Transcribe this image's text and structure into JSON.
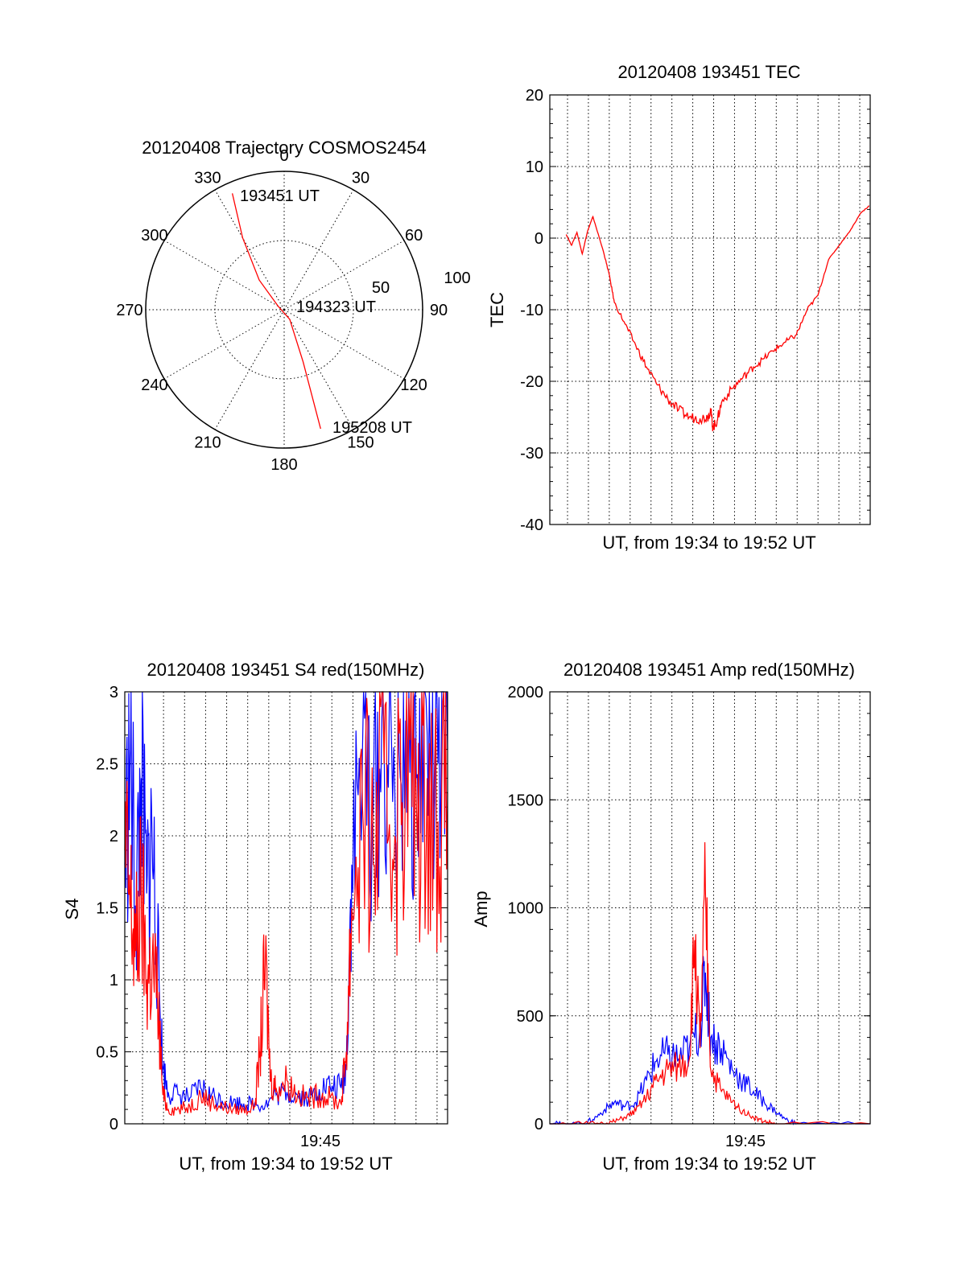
{
  "chart_data": [
    {
      "type": "polar",
      "title": "20120408 Trajectory COSMOS2454",
      "angle_labels": [
        "0",
        "30",
        "60",
        "90",
        "120",
        "150",
        "180",
        "210",
        "240",
        "270",
        "300",
        "330"
      ],
      "ring_labels": [
        "50",
        "100"
      ],
      "trajectory_color": "#ff0000",
      "trajectory": [
        {
          "az": 336,
          "r": 92
        },
        {
          "az": 330,
          "r": 60
        },
        {
          "az": 320,
          "r": 28
        },
        {
          "az": 300,
          "r": 5
        },
        {
          "az": 150,
          "r": 8
        },
        {
          "az": 160,
          "r": 40
        },
        {
          "az": 163,
          "r": 90
        }
      ],
      "annotations": [
        {
          "text": "193451 UT",
          "az": 342,
          "r": 88
        },
        {
          "text": "194323 UT",
          "az": 92,
          "r": 25
        },
        {
          "text": "195208 UT",
          "az": 146,
          "r": 100
        }
      ]
    },
    {
      "type": "line",
      "title": "20120408 193451 TEC",
      "xlabel": "UT, from 19:34 to 19:52 UT",
      "ylabel": "TEC",
      "xlim": [
        19.5697,
        19.8689
      ],
      "ylim": [
        -40,
        20
      ],
      "yticks": [
        "20",
        "10",
        "0",
        "-10",
        "-20",
        "-30",
        "-40"
      ],
      "series": [
        {
          "color": "#ff0000",
          "x": [
            19.585,
            19.59,
            19.595,
            19.6,
            19.605,
            19.61,
            19.62,
            19.625,
            19.63,
            19.64,
            19.65,
            19.66,
            19.67,
            19.68,
            19.69,
            19.7,
            19.71,
            19.717,
            19.72,
            19.722,
            19.726,
            19.73,
            19.74,
            19.75,
            19.76,
            19.77,
            19.78,
            19.79,
            19.8,
            19.81,
            19.82,
            19.83,
            19.84,
            19.85,
            19.86,
            19.868
          ],
          "y": [
            0.5,
            -1,
            0.8,
            -2.2,
            1,
            3,
            -2,
            -5,
            -9,
            -12,
            -15,
            -18,
            -20.5,
            -22.5,
            -24,
            -25,
            -25.2,
            -25,
            -24,
            -26.5,
            -25.5,
            -23,
            -21,
            -19.5,
            -18,
            -16.8,
            -15.5,
            -14.5,
            -13.5,
            -10,
            -8,
            -3,
            -1,
            1,
            3.5,
            4.5
          ]
        }
      ]
    },
    {
      "type": "line",
      "title": "20120408 193451 S4 red(150MHz)",
      "xlabel": "UT, from 19:34 to 19:52 UT",
      "ylabel": "S4",
      "xlim": [
        19.5697,
        19.8689
      ],
      "ylim": [
        0,
        3
      ],
      "yticks": [
        "0",
        "0.5",
        "1",
        "1.5",
        "2",
        "2.5",
        "3"
      ],
      "xticks": [
        "19:45"
      ],
      "series": [
        {
          "color": "#0000ff",
          "x": [
            19.5697,
            19.575,
            19.58,
            19.585,
            19.59,
            19.595,
            19.6,
            19.605,
            19.61,
            19.62,
            19.63,
            19.64,
            19.65,
            19.66,
            19.67,
            19.68,
            19.69,
            19.7,
            19.71,
            19.72,
            19.73,
            19.74,
            19.75,
            19.76,
            19.77,
            19.775,
            19.78,
            19.79,
            19.8,
            19.81,
            19.82,
            19.83,
            19.84,
            19.85,
            19.86,
            19.8689
          ],
          "y": [
            1.8,
            2.6,
            1.5,
            2.4,
            1.6,
            2.0,
            1.2,
            0.4,
            0.22,
            0.2,
            0.18,
            0.25,
            0.2,
            0.16,
            0.15,
            0.14,
            0.14,
            0.13,
            0.2,
            0.22,
            0.2,
            0.18,
            0.24,
            0.26,
            0.25,
            0.4,
            1.8,
            2.6,
            2.2,
            2.7,
            2.3,
            2.8,
            2.4,
            2.7,
            2.5,
            2.6
          ]
        },
        {
          "color": "#ff0000",
          "x": [
            19.5697,
            19.575,
            19.58,
            19.585,
            19.59,
            19.595,
            19.6,
            19.605,
            19.61,
            19.62,
            19.63,
            19.64,
            19.65,
            19.66,
            19.67,
            19.68,
            19.69,
            19.695,
            19.7,
            19.705,
            19.71,
            19.72,
            19.73,
            19.74,
            19.75,
            19.76,
            19.77,
            19.775,
            19.78,
            19.79,
            19.8,
            19.81,
            19.82,
            19.83,
            19.84,
            19.85,
            19.86,
            19.8689
          ],
          "y": [
            1.9,
            1.5,
            1.2,
            1.6,
            1.0,
            1.1,
            0.9,
            0.2,
            0.1,
            0.1,
            0.12,
            0.2,
            0.15,
            0.12,
            0.1,
            0.1,
            0.12,
            0.5,
            1.1,
            0.3,
            0.25,
            0.3,
            0.2,
            0.18,
            0.2,
            0.18,
            0.14,
            0.5,
            1.5,
            2.2,
            1.8,
            2.5,
            2.0,
            2.6,
            2.2,
            2.4,
            2.1,
            2.3
          ]
        }
      ]
    },
    {
      "type": "line",
      "title": "20120408 193451 Amp red(150MHz)",
      "xlabel": "UT, from 19:34 to 19:52 UT",
      "ylabel": "Amp",
      "xlim": [
        19.5697,
        19.8689
      ],
      "ylim": [
        0,
        2000
      ],
      "yticks": [
        "0",
        "500",
        "1000",
        "1500",
        "2000"
      ],
      "xticks": [
        "19:45"
      ],
      "series": [
        {
          "color": "#0000ff",
          "x": [
            19.5697,
            19.58,
            19.6,
            19.61,
            19.62,
            19.63,
            19.64,
            19.65,
            19.66,
            19.67,
            19.68,
            19.69,
            19.7,
            19.71,
            19.715,
            19.72,
            19.73,
            19.74,
            19.75,
            19.76,
            19.77,
            19.78,
            19.79,
            19.8,
            19.8689
          ],
          "y": [
            0,
            0,
            0,
            20,
            60,
            100,
            80,
            100,
            200,
            300,
            320,
            300,
            350,
            450,
            700,
            400,
            350,
            250,
            200,
            150,
            100,
            60,
            20,
            0,
            0
          ]
        },
        {
          "color": "#ff0000",
          "x": [
            19.5697,
            19.6,
            19.62,
            19.63,
            19.64,
            19.65,
            19.66,
            19.67,
            19.68,
            19.69,
            19.7,
            19.705,
            19.71,
            19.715,
            19.72,
            19.73,
            19.74,
            19.75,
            19.76,
            19.77,
            19.78,
            19.8689
          ],
          "y": [
            0,
            0,
            0,
            10,
            30,
            60,
            120,
            200,
            250,
            260,
            300,
            850,
            350,
            1080,
            250,
            150,
            100,
            60,
            30,
            10,
            0,
            0
          ]
        }
      ]
    }
  ]
}
